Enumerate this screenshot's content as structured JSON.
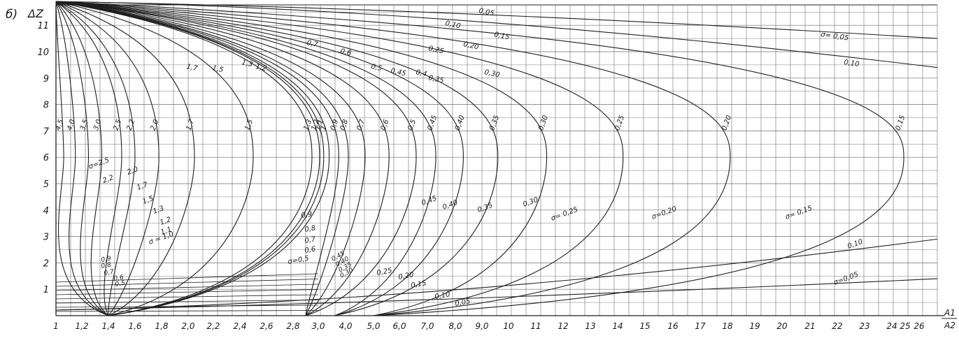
{
  "chart_data": {
    "type": "line",
    "panel_label": "б)",
    "ylabel": "ΔZ",
    "xlabel_top": "A1",
    "xlabel_bottom": "A2",
    "x_ticks": [
      "1",
      "1,2",
      "1,4",
      "1,6",
      "1,8",
      "2,0",
      "2,2",
      "2,4",
      "2,6",
      "2,8",
      "3,0",
      "4,0",
      "5,0",
      "6,0",
      "7,0",
      "8,0",
      "9,0",
      "10",
      "11",
      "12",
      "13",
      "14",
      "15",
      "16",
      "17",
      "18",
      "19",
      "20",
      "21",
      "22",
      "23",
      "24",
      "25",
      "26"
    ],
    "y_ticks": [
      "1",
      "2",
      "3",
      "4",
      "5",
      "6",
      "7",
      "8",
      "9",
      "10",
      "11"
    ],
    "ylim": [
      0,
      12
    ],
    "grid": true,
    "upper_bounding_curves": [
      {
        "label": "σ= 0,05",
        "y_end": 10.5
      },
      {
        "label": "0,10",
        "y_end": 9.4
      }
    ],
    "lower_bounding_curves": [
      {
        "label": "σ=0,05",
        "y_end": 1.4
      },
      {
        "label": "0,10",
        "y_end": 2.9
      }
    ],
    "series": [
      {
        "name": "4,5",
        "x_apex": 1.06,
        "x_end": 1.4
      },
      {
        "name": "4,0",
        "x_apex": 1.15,
        "x_end": 1.4
      },
      {
        "name": "3,5",
        "x_apex": 1.25,
        "x_end": 1.4
      },
      {
        "name": "3,0",
        "x_apex": 1.35,
        "x_end": 1.4
      },
      {
        "name": "2,5",
        "x_apex": 1.5,
        "x_end": 1.4
      },
      {
        "name": "2,2",
        "x_apex": 1.6,
        "x_end": 1.4
      },
      {
        "name": "2,0",
        "x_apex": 1.78,
        "x_end": 1.4
      },
      {
        "name": "1,7",
        "x_apex": 2.05,
        "x_end": 1.4
      },
      {
        "name": "1,5",
        "x_apex": 2.5,
        "x_end": 1.4
      },
      {
        "name": "1,3",
        "x_apex": 2.95,
        "x_end": 1.4
      },
      {
        "name": "1,2",
        "x_apex": 3.05,
        "x_end": 1.4
      },
      {
        "name": "1,1",
        "x_apex": 3.2,
        "x_end": 1.4
      },
      {
        "name": "1",
        "x_apex": 3.4,
        "x_end": 1.4
      },
      {
        "name": "0,9",
        "x_apex": 3.75,
        "x_end": 2.9
      },
      {
        "name": "0,8",
        "x_apex": 4.1,
        "x_end": 2.9
      },
      {
        "name": "0,7",
        "x_apex": 4.7,
        "x_end": 2.9
      },
      {
        "name": "0,6",
        "x_apex": 5.6,
        "x_end": 2.9
      },
      {
        "name": "0,5",
        "x_apex": 6.6,
        "x_end": 2.9
      },
      {
        "name": "0,45",
        "x_apex": 7.3,
        "x_end": 3.6
      },
      {
        "name": "0,40",
        "x_apex": 8.3,
        "x_end": 3.6
      },
      {
        "name": "0,35",
        "x_apex": 9.6,
        "x_end": 3.6
      },
      {
        "name": "0,30",
        "x_apex": 11.4,
        "x_end": 5.0
      },
      {
        "name": "0,25",
        "x_apex": 14.2,
        "x_end": 5.0
      },
      {
        "name": "0,20",
        "x_apex": 18.1,
        "x_end": 5.0
      },
      {
        "name": "0,15",
        "x_apex": 24.9,
        "x_end": 5.0
      }
    ],
    "upper_labels": [
      "0,05",
      "0,10",
      "0,15",
      "0,20",
      "0,25",
      "0,30",
      "0,35",
      "0,4",
      "0,45",
      "0,5",
      "0,6",
      "0,7",
      "1,2",
      "1,3",
      "1,5",
      "1,7"
    ],
    "upper_label_sigma": [
      "σ= 0,05",
      "0,10"
    ],
    "left_labels": [
      "σ=2,5",
      "2,2",
      "2,0",
      "1,7",
      "1,5",
      "1,3",
      "1,2",
      "1,1",
      "σ = 1,0"
    ],
    "left_small": [
      "0,9",
      "0,8",
      "0,7",
      "0,6",
      "0,5"
    ],
    "mid_labels": [
      "0,9",
      "0,8",
      "0,7",
      "0,6",
      "σ=0,5"
    ],
    "mid_small": [
      "0,45",
      "0,40",
      "0,35",
      "0,30"
    ],
    "low_labels": [
      "0,25",
      "0,20",
      "0,15",
      "0,10",
      "0,05"
    ],
    "right_lower_labels": [
      "0,45",
      "0,40",
      "0,35",
      "0,30",
      "σ= 0,25",
      "σ=0,20",
      "σ= 0,15",
      "0,10",
      "σ=0,05"
    ],
    "colors": {
      "line": "#1f1f1f",
      "grid": "#6e6e6e",
      "background": "#ffffff"
    }
  }
}
